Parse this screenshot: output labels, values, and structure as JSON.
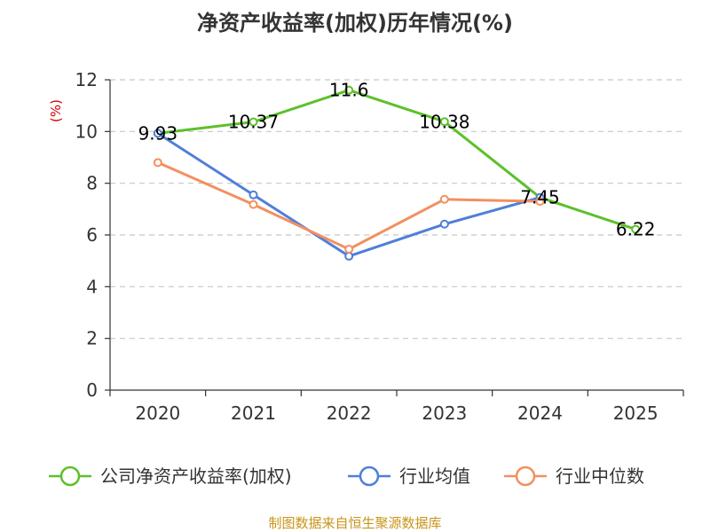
{
  "chart_data": {
    "type": "line",
    "title": "净资产收益率(加权)历年情况(%)",
    "ylabel": "(%)",
    "xlabel": "",
    "categories": [
      "2020",
      "2021",
      "2022",
      "2023",
      "2024",
      "2025"
    ],
    "ylim": [
      0,
      12
    ],
    "yticks": [
      0,
      2,
      4,
      6,
      8,
      10,
      12
    ],
    "grid": true,
    "legend_position": "bottom",
    "series": [
      {
        "name": "公司净资产收益率(加权)",
        "color": "#5cc12a",
        "values": [
          9.93,
          10.37,
          11.6,
          10.38,
          7.45,
          6.22
        ],
        "labels": [
          "9.93",
          "10.37",
          "11.6",
          "10.38",
          "7.45",
          "6.22"
        ]
      },
      {
        "name": "行业均值",
        "color": "#4f7fd8",
        "values": [
          9.93,
          7.55,
          5.18,
          6.42,
          7.45,
          null
        ]
      },
      {
        "name": "行业中位数",
        "color": "#f29060",
        "values": [
          8.8,
          7.18,
          5.45,
          7.38,
          7.3,
          null
        ]
      }
    ],
    "source": "制图数据来自恒生聚源数据库"
  }
}
